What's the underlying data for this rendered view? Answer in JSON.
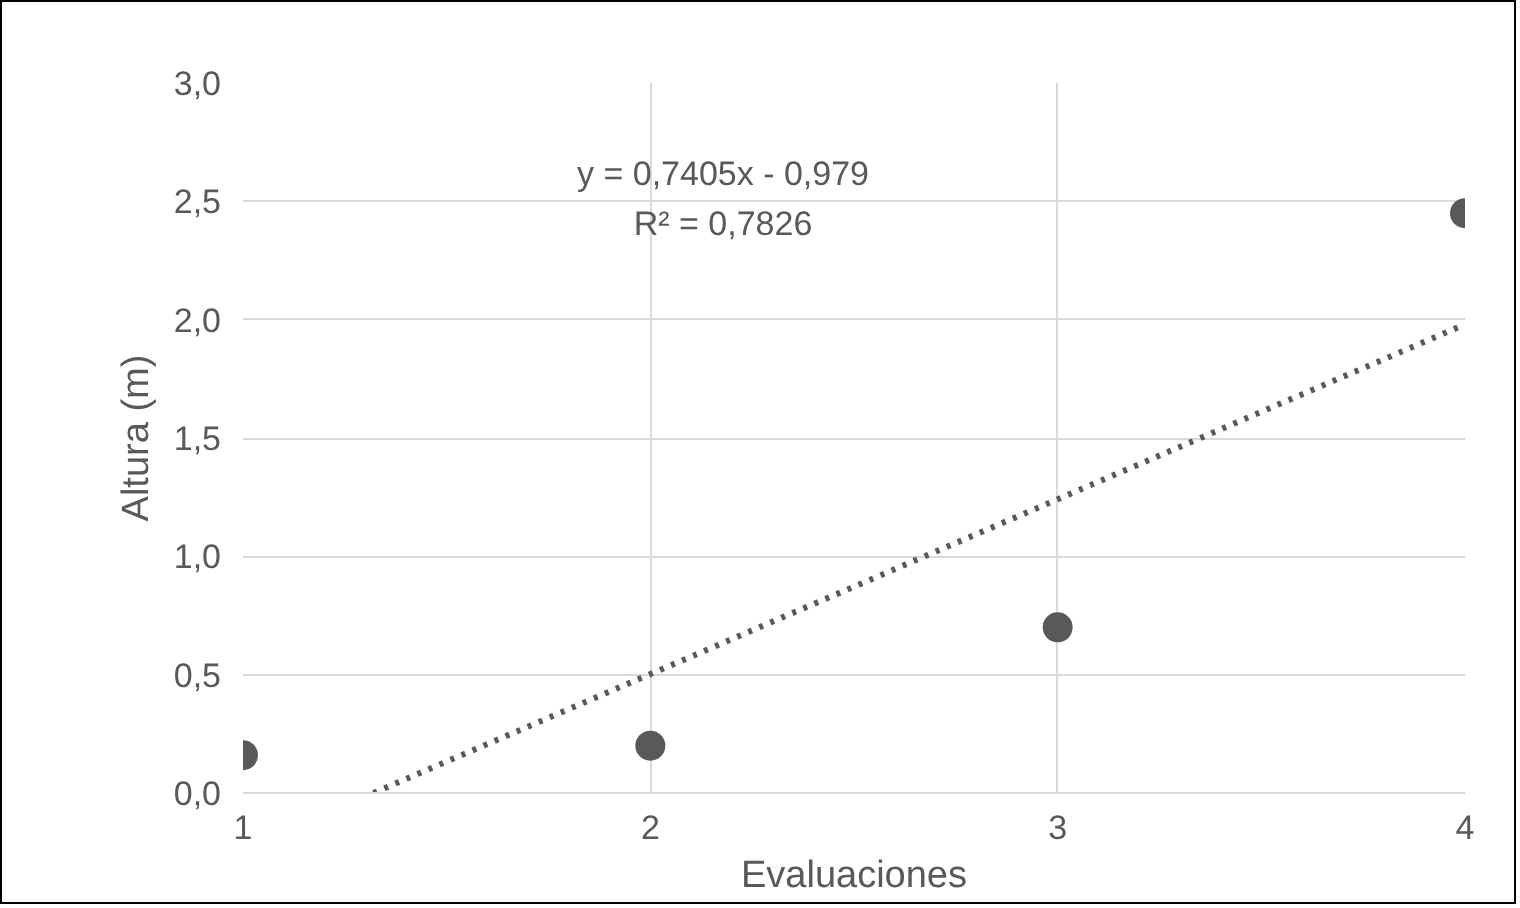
{
  "chart_data": {
    "type": "scatter",
    "xlabel": "Evaluaciones",
    "ylabel": "Altura (m)",
    "x": [
      1,
      2,
      3,
      4
    ],
    "series": [
      {
        "color": "#595959",
        "values": [
          0.16,
          0.2,
          0.7,
          2.45
        ],
        "marker": "circle"
      },
      {
        "type": "line",
        "color": "#595959",
        "x": [
          1.32,
          4
        ],
        "values": [
          0,
          1.98
        ],
        "line_style": "dotted"
      }
    ],
    "xlim": [
      1,
      4
    ],
    "xticks": [
      1,
      2,
      3,
      4
    ],
    "ylim": [
      0,
      3
    ],
    "yticks": [
      {
        "value": 0,
        "label": "0,0"
      },
      {
        "value": 0.5,
        "label": "0,5"
      },
      {
        "value": 1,
        "label": "1,0"
      },
      {
        "value": 1.5,
        "label": "1,5"
      },
      {
        "value": 2,
        "label": "2,0"
      },
      {
        "value": 2.5,
        "label": "2,5"
      },
      {
        "value": 3,
        "label": "3,0"
      }
    ],
    "annotations": [
      "y = 0,7405x - 0,979",
      "R² = 0,7826"
    ],
    "grid": true
  }
}
